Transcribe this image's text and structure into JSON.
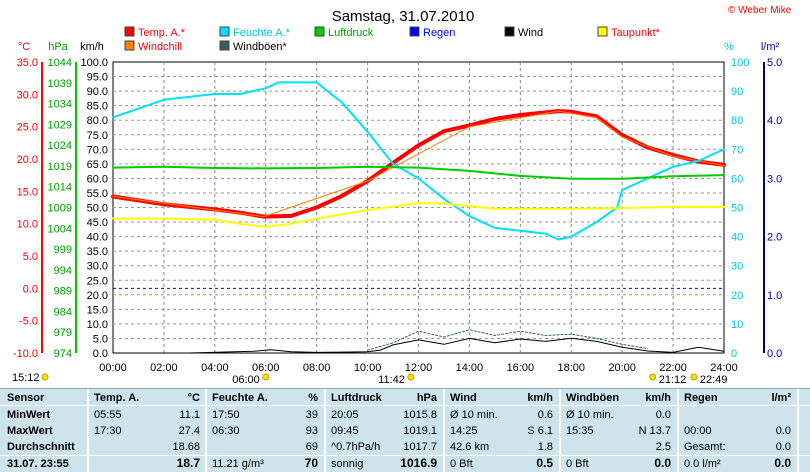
{
  "chart_data": {
    "type": "line",
    "title": "Samstag, 31.07.2010",
    "copyright": "© Weber Mike",
    "x_ticks": [
      "00:00",
      "02:00",
      "04:00",
      "06:00",
      "08:00",
      "10:00",
      "12:00",
      "14:00",
      "16:00",
      "18:00",
      "20:00",
      "22:00",
      "24:00"
    ],
    "axes": {
      "temp": {
        "unit": "°C",
        "ticks": [
          "35.0",
          "30.0",
          "25.0",
          "20.0",
          "15.0",
          "10.0",
          "5.0",
          "0.0",
          "-5.0",
          "-10.0"
        ],
        "range": [
          -10,
          35
        ]
      },
      "pressure": {
        "unit": "hPa",
        "ticks": [
          "1044",
          "1039",
          "1034",
          "1029",
          "1024",
          "1019",
          "1014",
          "1009",
          "1004",
          "999",
          "994",
          "989",
          "984",
          "979",
          "974"
        ],
        "range": [
          974,
          1044
        ]
      },
      "wind": {
        "unit": "km/h",
        "ticks": [
          "100.0",
          "95.0",
          "90.0",
          "85.0",
          "80.0",
          "75.0",
          "70.0",
          "65.0",
          "60.0",
          "55.0",
          "50.0",
          "45.0",
          "40.0",
          "35.0",
          "30.0",
          "25.0",
          "20.0",
          "15.0",
          "10.0",
          "5.0",
          "0.0"
        ],
        "range": [
          0,
          100
        ]
      },
      "humidity": {
        "unit": "%",
        "ticks": [
          "100",
          "90",
          "80",
          "70",
          "60",
          "50",
          "40",
          "30",
          "20",
          "10",
          "0"
        ],
        "range": [
          0,
          100
        ]
      },
      "rain": {
        "unit": "l/m²",
        "ticks": [
          "5.0",
          "4.0",
          "3.0",
          "2.0",
          "1.0",
          "0.0"
        ],
        "range": [
          0,
          5
        ]
      }
    },
    "legend": [
      {
        "name": "Temp. A.*",
        "color": "#ff0000",
        "text_color": "#ff0000"
      },
      {
        "name": "Windchill",
        "color": "#ff8000",
        "text_color": "#ff0000"
      },
      {
        "name": "Feuchte A.*",
        "color": "#00e0ff",
        "text_color": "#00c8e0"
      },
      {
        "name": "Windböen*",
        "color": "#2f5f5f",
        "text_color": "#000000"
      },
      {
        "name": "Luftdruck",
        "color": "#00cc00",
        "text_color": "#00a000"
      },
      {
        "name": "Regen",
        "color": "#0000ff",
        "text_color": "#0000ff"
      },
      {
        "name": "Wind",
        "color": "#000000",
        "text_color": "#000000"
      },
      {
        "name": "Taupunkt*",
        "color": "#ffff00",
        "text_color": "#ff0000"
      }
    ],
    "series": [
      {
        "name": "Temp. A.*",
        "axis": "temp",
        "color": "#ff0000",
        "width": 4,
        "x": [
          0,
          1,
          2,
          3,
          4,
          5,
          5.92,
          7,
          8,
          9,
          10,
          11,
          12,
          13,
          14,
          15,
          16,
          17,
          17.5,
          18,
          19,
          20,
          21,
          22,
          23,
          24
        ],
        "y": [
          14.2,
          13.6,
          13.0,
          12.6,
          12.2,
          11.7,
          11.1,
          11.2,
          12.5,
          14.3,
          16.6,
          19.4,
          22.1,
          24.3,
          25.2,
          26.2,
          26.8,
          27.2,
          27.4,
          27.3,
          26.6,
          23.7,
          21.8,
          20.6,
          19.6,
          19.1
        ]
      },
      {
        "name": "Windchill",
        "axis": "temp",
        "color": "#ff8000",
        "width": 1,
        "x": [
          0,
          5.92,
          10,
          14,
          17.5,
          19,
          20,
          22,
          24
        ],
        "y": [
          14.2,
          11.1,
          16.6,
          25.0,
          27.4,
          26.4,
          23.4,
          20.4,
          19.0
        ]
      },
      {
        "name": "Feuchte A.*",
        "axis": "humidity",
        "color": "#00e0ff",
        "width": 2,
        "x": [
          0,
          1,
          2,
          3,
          4,
          5,
          6,
          6.5,
          7,
          8,
          9,
          10,
          11,
          12,
          13,
          14,
          15,
          16,
          17,
          17.5,
          18,
          19,
          19.8,
          20,
          21,
          22,
          23,
          24
        ],
        "y": [
          81,
          84,
          87,
          88,
          89,
          89,
          91,
          93,
          93,
          93,
          86,
          76,
          65,
          60,
          53,
          47,
          43,
          42,
          41,
          39,
          40,
          45,
          50,
          56,
          60,
          64,
          66,
          70
        ]
      },
      {
        "name": "Taupunkt*",
        "axis": "temp",
        "color": "#ffff00",
        "width": 2,
        "x": [
          0,
          2,
          4,
          5,
          6,
          7,
          8,
          10,
          12,
          13,
          14,
          15,
          16,
          18,
          20,
          22,
          24
        ],
        "y": [
          10.8,
          10.8,
          10.6,
          10.0,
          9.5,
          10.0,
          10.8,
          12.1,
          13.2,
          13.1,
          12.7,
          12.3,
          12.3,
          12.3,
          12.4,
          12.6,
          12.6
        ]
      },
      {
        "name": "Luftdruck",
        "axis": "pressure",
        "color": "#00cc00",
        "width": 2,
        "x": [
          0,
          2,
          4,
          6,
          8,
          10,
          12,
          14,
          16,
          18,
          20,
          22,
          24
        ],
        "y": [
          1018.6,
          1018.8,
          1018.5,
          1018.4,
          1018.5,
          1018.8,
          1018.6,
          1017.8,
          1016.6,
          1015.9,
          1015.9,
          1016.5,
          1016.8
        ]
      },
      {
        "name": "Wind",
        "axis": "wind",
        "color": "#000000",
        "width": 1,
        "x": [
          0,
          3,
          5.5,
          6.2,
          7,
          8,
          9,
          10,
          10.5,
          11,
          12,
          13,
          14,
          15,
          16,
          17,
          18,
          19,
          20,
          21,
          22,
          23,
          24
        ],
        "y": [
          0,
          0,
          0.6,
          1.1,
          0.4,
          0.2,
          0.3,
          0.4,
          1.0,
          2.8,
          4.5,
          3.0,
          5.0,
          3.5,
          4.8,
          4.0,
          5.1,
          4.0,
          2.0,
          0.7,
          0.2,
          2.0,
          0.6
        ]
      },
      {
        "name": "Windböen*",
        "axis": "wind",
        "color": "#2f5f5f",
        "width": 1,
        "dash": "2,2",
        "x": [
          10,
          11,
          12,
          13,
          14,
          15,
          16,
          17,
          18,
          19,
          20,
          21
        ],
        "y": [
          1.0,
          3.5,
          7.5,
          5.5,
          8.0,
          6.0,
          7.5,
          6.0,
          6.5,
          5.0,
          3.0,
          1.5
        ]
      }
    ],
    "reference_lines": [
      {
        "axis": "temp",
        "value": 0.0,
        "color": "#0000ff",
        "style": "dashed"
      }
    ],
    "grid": true,
    "time_markers": [
      {
        "label": "15:12",
        "row": "upper",
        "side": "left"
      },
      {
        "label": "06:00",
        "row": "lower"
      },
      {
        "label": "11:42",
        "row": "lower"
      },
      {
        "label": "21:12",
        "row": "lower"
      },
      {
        "label": "22:49",
        "row": "lower"
      }
    ]
  },
  "stats": {
    "headers": {
      "sensor": "Sensor",
      "temp": "Temp. A.",
      "temp_unit": "°C",
      "hum": "Feuchte A.",
      "hum_unit": "%",
      "press": "Luftdruck",
      "press_unit": "hPa",
      "wind": "Wind",
      "wind_unit": "km/h",
      "gust": "Windböen",
      "gust_unit": "km/h",
      "rain": "Regen",
      "rain_unit": "l/m²"
    },
    "row_labels": [
      "MinWert",
      "MaxWert",
      "Durchschnitt",
      "31.07. 23:55"
    ],
    "temp": [
      [
        "05:55",
        "11.1"
      ],
      [
        "17:30",
        "27.4"
      ],
      [
        "",
        "18.68"
      ],
      [
        "",
        "18.7"
      ]
    ],
    "hum": [
      [
        "17:50",
        "39"
      ],
      [
        "06:30",
        "93"
      ],
      [
        "",
        "69"
      ],
      [
        "11.21 g/m³",
        "70"
      ]
    ],
    "press": [
      [
        "20:05",
        "1015.8"
      ],
      [
        "09:45",
        "1019.1"
      ],
      [
        "^0.7hPa/h",
        "1017.7"
      ],
      [
        "sonnig",
        "1016.9"
      ]
    ],
    "wind": [
      [
        "Ø 10 min.",
        "0.6"
      ],
      [
        "14:25",
        "S 6.1"
      ],
      [
        "42.6 km",
        "1.8"
      ],
      [
        "0 Bft",
        "0.5"
      ]
    ],
    "gust": [
      [
        "Ø 10 min.",
        "0.0"
      ],
      [
        "15:35",
        "N 13.7"
      ],
      [
        "",
        "2.5"
      ],
      [
        "0 Bft",
        "0.0"
      ]
    ],
    "rain": [
      [
        "",
        ""
      ],
      [
        "00:00",
        "0.0"
      ],
      [
        "Gesamt:",
        "0.0"
      ],
      [
        "0.0 l/m²",
        "0.0"
      ]
    ]
  }
}
